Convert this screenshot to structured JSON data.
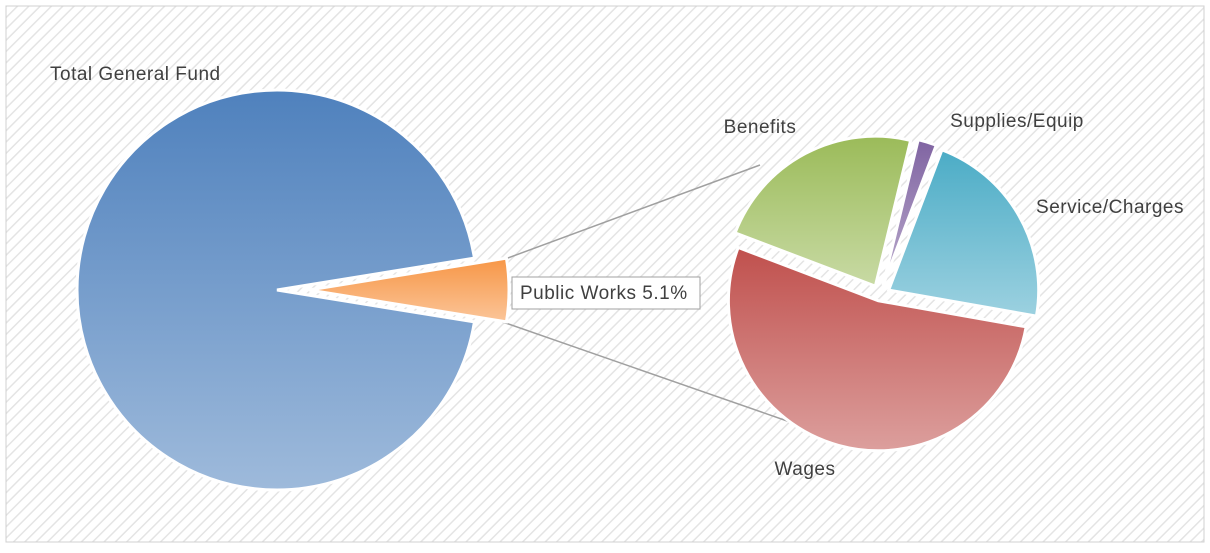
{
  "chart_data": [
    {
      "type": "pie",
      "categories": [
        "Total General Fund",
        "Public Works"
      ],
      "values": [
        94.9,
        5.1
      ],
      "value_labels": [
        null,
        "5.1%"
      ],
      "colors": [
        "#4f81bd",
        "#f79646"
      ]
    },
    {
      "type": "pie",
      "categories": [
        "Wages",
        "Benefits",
        "Supplies/Equip",
        "Service/Charges"
      ],
      "values": [
        53,
        23,
        2,
        22
      ],
      "colors": [
        "#c0504d",
        "#9bbb59",
        "#8064a2",
        "#4bacc6"
      ]
    }
  ]
}
